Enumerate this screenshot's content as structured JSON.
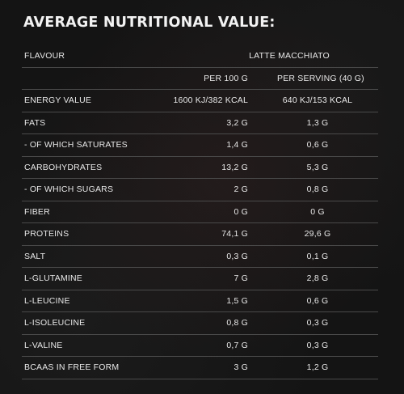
{
  "title": "AVERAGE NUTRITIONAL VALUE:",
  "table": {
    "flavour_label": "FLAVOUR",
    "flavour_value": "LATTE MACCHIATO",
    "col_per100": "PER 100 G",
    "col_serving": "PER SERVING (40 G)",
    "rows": [
      {
        "label": "ENERGY VALUE",
        "per100": "1600 KJ/382 KCAL",
        "serving": "640 KJ/153 KCAL"
      },
      {
        "label": "FATS",
        "per100": "3,2 G",
        "serving": "1,3 G"
      },
      {
        "label": "- OF WHICH SATURATES",
        "per100": "1,4 G",
        "serving": "0,6 G"
      },
      {
        "label": "CARBOHYDRATES",
        "per100": "13,2 G",
        "serving": "5,3 G"
      },
      {
        "label": "- OF WHICH SUGARS",
        "per100": "2 G",
        "serving": "0,8 G"
      },
      {
        "label": "FIBER",
        "per100": "0 G",
        "serving": "0 G"
      },
      {
        "label": "PROTEINS",
        "per100": "74,1 G",
        "serving": "29,6 G"
      },
      {
        "label": "SALT",
        "per100": "0,3 G",
        "serving": "0,1 G"
      },
      {
        "label": "L-GLUTAMINE",
        "per100": "7 G",
        "serving": "2,8 G"
      },
      {
        "label": "L-LEUCINE",
        "per100": "1,5 G",
        "serving": "0,6 G"
      },
      {
        "label": "L-ISOLEUCINE",
        "per100": "0,8 G",
        "serving": "0,3 G"
      },
      {
        "label": "L-VALINE",
        "per100": "0,7 G",
        "serving": "0,3 G"
      },
      {
        "label": "BCAAS IN FREE FORM",
        "per100": "3 G",
        "serving": "1,2 G"
      }
    ]
  }
}
